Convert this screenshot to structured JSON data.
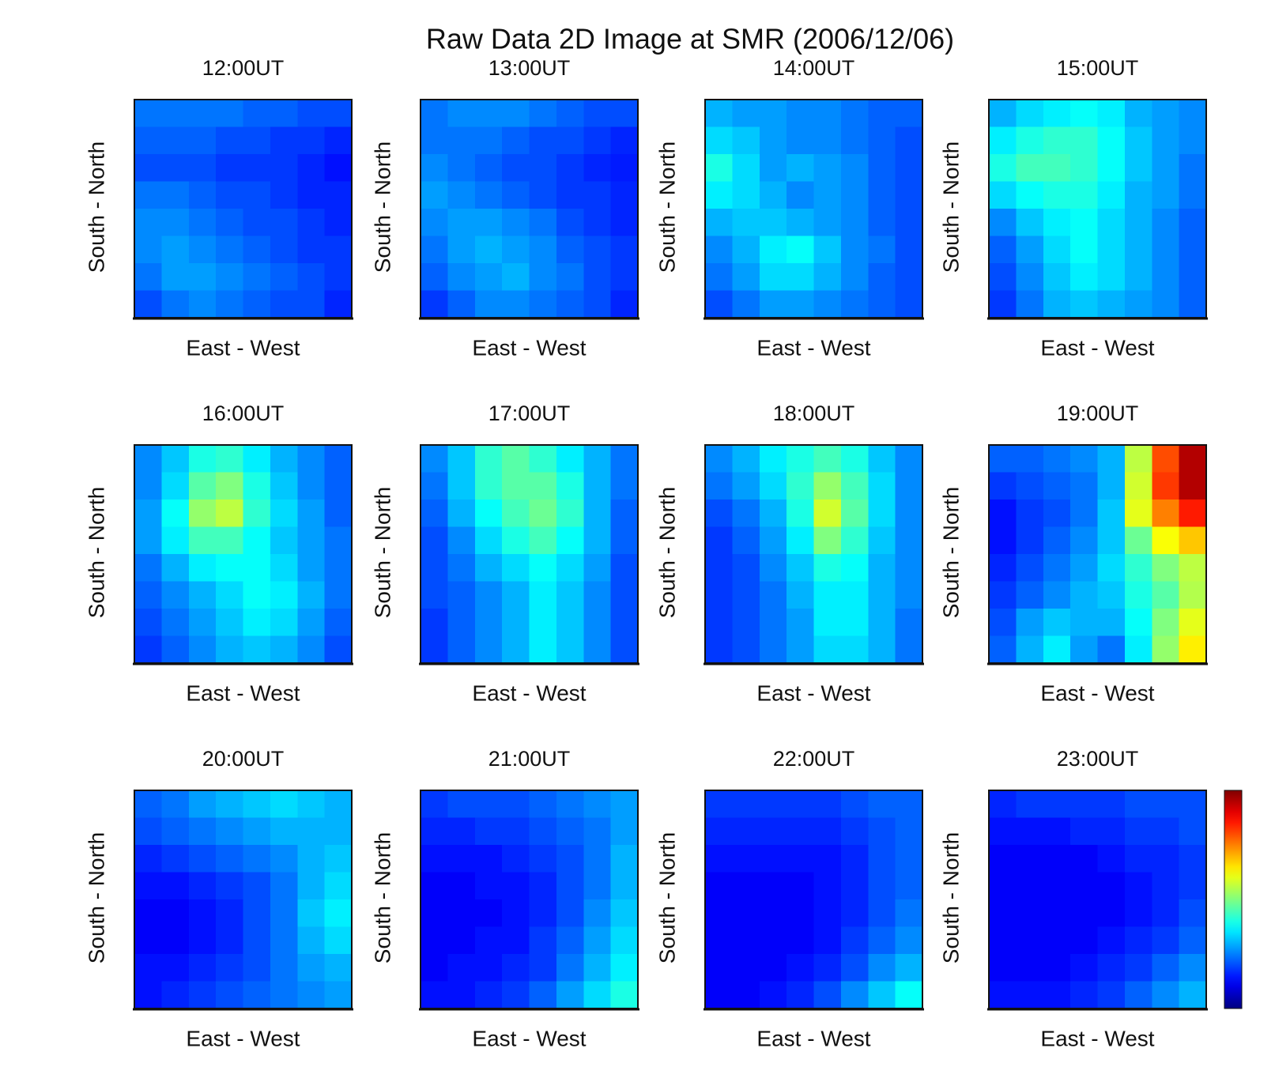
{
  "title": "Raw Data 2D Image at SMR (2006/12/06)",
  "colorbar": {
    "colormap": "jet",
    "vlim": [
      0,
      1
    ]
  },
  "chart_data": [
    {
      "type": "heatmap",
      "title": "12:00UT",
      "xlabel": "East - West",
      "ylabel": "South - North",
      "values": [
        [
          0.24,
          0.24,
          0.24,
          0.24,
          0.22,
          0.22,
          0.2,
          0.2
        ],
        [
          0.22,
          0.22,
          0.22,
          0.2,
          0.2,
          0.18,
          0.18,
          0.16
        ],
        [
          0.2,
          0.2,
          0.2,
          0.18,
          0.18,
          0.18,
          0.16,
          0.14
        ],
        [
          0.24,
          0.24,
          0.22,
          0.2,
          0.2,
          0.18,
          0.16,
          0.16
        ],
        [
          0.26,
          0.26,
          0.24,
          0.22,
          0.2,
          0.2,
          0.18,
          0.16
        ],
        [
          0.26,
          0.28,
          0.26,
          0.24,
          0.22,
          0.2,
          0.18,
          0.18
        ],
        [
          0.24,
          0.28,
          0.28,
          0.26,
          0.24,
          0.22,
          0.2,
          0.18
        ],
        [
          0.2,
          0.24,
          0.26,
          0.24,
          0.22,
          0.2,
          0.2,
          0.16
        ]
      ]
    },
    {
      "type": "heatmap",
      "title": "13:00UT",
      "xlabel": "East - West",
      "ylabel": "South - North",
      "values": [
        [
          0.24,
          0.26,
          0.26,
          0.26,
          0.24,
          0.22,
          0.2,
          0.2
        ],
        [
          0.24,
          0.24,
          0.24,
          0.22,
          0.2,
          0.2,
          0.18,
          0.16
        ],
        [
          0.26,
          0.24,
          0.22,
          0.2,
          0.2,
          0.18,
          0.16,
          0.15
        ],
        [
          0.28,
          0.26,
          0.24,
          0.22,
          0.2,
          0.18,
          0.18,
          0.16
        ],
        [
          0.26,
          0.28,
          0.28,
          0.26,
          0.24,
          0.2,
          0.18,
          0.16
        ],
        [
          0.24,
          0.28,
          0.3,
          0.28,
          0.26,
          0.22,
          0.2,
          0.18
        ],
        [
          0.22,
          0.26,
          0.28,
          0.3,
          0.26,
          0.24,
          0.2,
          0.18
        ],
        [
          0.18,
          0.22,
          0.26,
          0.26,
          0.24,
          0.22,
          0.2,
          0.16
        ]
      ]
    },
    {
      "type": "heatmap",
      "title": "14:00UT",
      "xlabel": "East - West",
      "ylabel": "South - North",
      "values": [
        [
          0.3,
          0.28,
          0.28,
          0.26,
          0.26,
          0.24,
          0.22,
          0.22
        ],
        [
          0.34,
          0.32,
          0.28,
          0.26,
          0.26,
          0.24,
          0.22,
          0.2
        ],
        [
          0.4,
          0.34,
          0.28,
          0.3,
          0.28,
          0.26,
          0.22,
          0.2
        ],
        [
          0.36,
          0.34,
          0.3,
          0.26,
          0.28,
          0.26,
          0.22,
          0.2
        ],
        [
          0.3,
          0.32,
          0.32,
          0.3,
          0.28,
          0.26,
          0.22,
          0.2
        ],
        [
          0.26,
          0.3,
          0.36,
          0.38,
          0.32,
          0.26,
          0.24,
          0.2
        ],
        [
          0.24,
          0.28,
          0.34,
          0.34,
          0.3,
          0.26,
          0.22,
          0.2
        ],
        [
          0.2,
          0.24,
          0.28,
          0.28,
          0.26,
          0.24,
          0.22,
          0.2
        ]
      ]
    },
    {
      "type": "heatmap",
      "title": "15:00UT",
      "xlabel": "East - West",
      "ylabel": "South - North",
      "values": [
        [
          0.3,
          0.34,
          0.36,
          0.38,
          0.36,
          0.3,
          0.28,
          0.26
        ],
        [
          0.36,
          0.4,
          0.42,
          0.42,
          0.38,
          0.32,
          0.28,
          0.26
        ],
        [
          0.4,
          0.44,
          0.44,
          0.42,
          0.38,
          0.32,
          0.28,
          0.24
        ],
        [
          0.34,
          0.38,
          0.4,
          0.4,
          0.36,
          0.3,
          0.28,
          0.24
        ],
        [
          0.26,
          0.32,
          0.36,
          0.38,
          0.34,
          0.3,
          0.26,
          0.22
        ],
        [
          0.22,
          0.28,
          0.34,
          0.38,
          0.34,
          0.3,
          0.26,
          0.22
        ],
        [
          0.2,
          0.26,
          0.32,
          0.36,
          0.34,
          0.3,
          0.26,
          0.22
        ],
        [
          0.18,
          0.24,
          0.3,
          0.32,
          0.3,
          0.28,
          0.26,
          0.22
        ]
      ]
    },
    {
      "type": "heatmap",
      "title": "16:00UT",
      "xlabel": "East - West",
      "ylabel": "South - North",
      "values": [
        [
          0.26,
          0.32,
          0.4,
          0.42,
          0.36,
          0.3,
          0.26,
          0.22
        ],
        [
          0.26,
          0.34,
          0.46,
          0.5,
          0.4,
          0.32,
          0.26,
          0.22
        ],
        [
          0.28,
          0.38,
          0.52,
          0.56,
          0.42,
          0.34,
          0.28,
          0.22
        ],
        [
          0.28,
          0.36,
          0.44,
          0.44,
          0.38,
          0.32,
          0.28,
          0.24
        ],
        [
          0.24,
          0.3,
          0.36,
          0.38,
          0.38,
          0.34,
          0.28,
          0.24
        ],
        [
          0.22,
          0.26,
          0.3,
          0.34,
          0.38,
          0.36,
          0.3,
          0.24
        ],
        [
          0.2,
          0.24,
          0.28,
          0.32,
          0.36,
          0.34,
          0.28,
          0.22
        ],
        [
          0.18,
          0.22,
          0.26,
          0.3,
          0.32,
          0.3,
          0.26,
          0.2
        ]
      ]
    },
    {
      "type": "heatmap",
      "title": "17:00UT",
      "xlabel": "East - West",
      "ylabel": "South - North",
      "values": [
        [
          0.26,
          0.32,
          0.42,
          0.46,
          0.42,
          0.36,
          0.3,
          0.24
        ],
        [
          0.24,
          0.32,
          0.42,
          0.46,
          0.46,
          0.4,
          0.3,
          0.24
        ],
        [
          0.22,
          0.3,
          0.38,
          0.44,
          0.48,
          0.42,
          0.3,
          0.22
        ],
        [
          0.2,
          0.26,
          0.34,
          0.4,
          0.44,
          0.38,
          0.3,
          0.22
        ],
        [
          0.2,
          0.24,
          0.3,
          0.34,
          0.38,
          0.34,
          0.28,
          0.2
        ],
        [
          0.2,
          0.22,
          0.26,
          0.3,
          0.36,
          0.32,
          0.26,
          0.2
        ],
        [
          0.18,
          0.22,
          0.26,
          0.3,
          0.36,
          0.32,
          0.26,
          0.2
        ],
        [
          0.18,
          0.22,
          0.26,
          0.3,
          0.36,
          0.32,
          0.26,
          0.2
        ]
      ]
    },
    {
      "type": "heatmap",
      "title": "18:00UT",
      "xlabel": "East - West",
      "ylabel": "South - North",
      "values": [
        [
          0.26,
          0.3,
          0.36,
          0.4,
          0.44,
          0.4,
          0.32,
          0.26
        ],
        [
          0.24,
          0.28,
          0.34,
          0.42,
          0.52,
          0.44,
          0.34,
          0.26
        ],
        [
          0.2,
          0.24,
          0.3,
          0.4,
          0.58,
          0.46,
          0.34,
          0.26
        ],
        [
          0.18,
          0.22,
          0.28,
          0.36,
          0.5,
          0.42,
          0.32,
          0.26
        ],
        [
          0.18,
          0.2,
          0.26,
          0.32,
          0.4,
          0.38,
          0.3,
          0.26
        ],
        [
          0.18,
          0.2,
          0.24,
          0.3,
          0.36,
          0.36,
          0.3,
          0.26
        ],
        [
          0.18,
          0.2,
          0.24,
          0.28,
          0.36,
          0.36,
          0.3,
          0.24
        ],
        [
          0.18,
          0.2,
          0.24,
          0.28,
          0.34,
          0.34,
          0.3,
          0.24
        ]
      ]
    },
    {
      "type": "heatmap",
      "title": "19:00UT",
      "xlabel": "East - West",
      "ylabel": "South - North",
      "values": [
        [
          0.22,
          0.22,
          0.24,
          0.26,
          0.3,
          0.56,
          0.8,
          0.95
        ],
        [
          0.18,
          0.2,
          0.22,
          0.24,
          0.3,
          0.58,
          0.82,
          0.95
        ],
        [
          0.14,
          0.18,
          0.2,
          0.24,
          0.32,
          0.6,
          0.75,
          0.85
        ],
        [
          0.14,
          0.18,
          0.22,
          0.26,
          0.32,
          0.48,
          0.62,
          0.68
        ],
        [
          0.16,
          0.2,
          0.24,
          0.28,
          0.34,
          0.42,
          0.5,
          0.56
        ],
        [
          0.18,
          0.22,
          0.26,
          0.3,
          0.32,
          0.4,
          0.46,
          0.55
        ],
        [
          0.2,
          0.28,
          0.32,
          0.3,
          0.3,
          0.38,
          0.5,
          0.6
        ],
        [
          0.22,
          0.3,
          0.36,
          0.28,
          0.24,
          0.36,
          0.52,
          0.64
        ]
      ]
    },
    {
      "type": "heatmap",
      "title": "20:00UT",
      "xlabel": "East - West",
      "ylabel": "South - North",
      "values": [
        [
          0.22,
          0.24,
          0.28,
          0.3,
          0.32,
          0.34,
          0.32,
          0.3
        ],
        [
          0.2,
          0.22,
          0.24,
          0.26,
          0.28,
          0.3,
          0.3,
          0.3
        ],
        [
          0.16,
          0.18,
          0.2,
          0.22,
          0.24,
          0.26,
          0.3,
          0.32
        ],
        [
          0.14,
          0.14,
          0.16,
          0.18,
          0.2,
          0.24,
          0.3,
          0.34
        ],
        [
          0.12,
          0.12,
          0.14,
          0.16,
          0.2,
          0.24,
          0.32,
          0.36
        ],
        [
          0.12,
          0.12,
          0.14,
          0.16,
          0.2,
          0.24,
          0.3,
          0.34
        ],
        [
          0.14,
          0.14,
          0.16,
          0.18,
          0.2,
          0.24,
          0.28,
          0.3
        ],
        [
          0.14,
          0.16,
          0.18,
          0.2,
          0.22,
          0.24,
          0.26,
          0.28
        ]
      ]
    },
    {
      "type": "heatmap",
      "title": "21:00UT",
      "xlabel": "East - West",
      "ylabel": "South - North",
      "values": [
        [
          0.18,
          0.2,
          0.2,
          0.2,
          0.22,
          0.24,
          0.26,
          0.28
        ],
        [
          0.16,
          0.16,
          0.18,
          0.18,
          0.2,
          0.22,
          0.24,
          0.28
        ],
        [
          0.14,
          0.14,
          0.14,
          0.16,
          0.18,
          0.2,
          0.24,
          0.3
        ],
        [
          0.12,
          0.12,
          0.14,
          0.14,
          0.16,
          0.2,
          0.24,
          0.3
        ],
        [
          0.12,
          0.12,
          0.12,
          0.14,
          0.16,
          0.2,
          0.26,
          0.32
        ],
        [
          0.12,
          0.12,
          0.14,
          0.14,
          0.18,
          0.22,
          0.28,
          0.34
        ],
        [
          0.12,
          0.14,
          0.14,
          0.16,
          0.18,
          0.24,
          0.3,
          0.36
        ],
        [
          0.14,
          0.14,
          0.16,
          0.18,
          0.22,
          0.28,
          0.34,
          0.4
        ]
      ]
    },
    {
      "type": "heatmap",
      "title": "22:00UT",
      "xlabel": "East - West",
      "ylabel": "South - North",
      "values": [
        [
          0.18,
          0.18,
          0.18,
          0.18,
          0.18,
          0.2,
          0.22,
          0.22
        ],
        [
          0.16,
          0.16,
          0.16,
          0.16,
          0.16,
          0.18,
          0.2,
          0.22
        ],
        [
          0.14,
          0.14,
          0.14,
          0.14,
          0.14,
          0.16,
          0.2,
          0.22
        ],
        [
          0.12,
          0.12,
          0.12,
          0.12,
          0.14,
          0.16,
          0.2,
          0.22
        ],
        [
          0.12,
          0.12,
          0.12,
          0.12,
          0.14,
          0.16,
          0.2,
          0.24
        ],
        [
          0.12,
          0.12,
          0.12,
          0.12,
          0.14,
          0.18,
          0.22,
          0.26
        ],
        [
          0.12,
          0.12,
          0.12,
          0.14,
          0.16,
          0.2,
          0.26,
          0.3
        ],
        [
          0.12,
          0.12,
          0.14,
          0.16,
          0.2,
          0.26,
          0.32,
          0.38
        ]
      ]
    },
    {
      "type": "heatmap",
      "title": "23:00UT",
      "xlabel": "East - West",
      "ylabel": "South - North",
      "values": [
        [
          0.16,
          0.18,
          0.18,
          0.18,
          0.18,
          0.2,
          0.2,
          0.2
        ],
        [
          0.14,
          0.14,
          0.14,
          0.16,
          0.16,
          0.18,
          0.18,
          0.2
        ],
        [
          0.12,
          0.12,
          0.12,
          0.12,
          0.14,
          0.16,
          0.16,
          0.18
        ],
        [
          0.12,
          0.12,
          0.12,
          0.12,
          0.12,
          0.14,
          0.16,
          0.18
        ],
        [
          0.12,
          0.12,
          0.12,
          0.12,
          0.12,
          0.14,
          0.16,
          0.2
        ],
        [
          0.12,
          0.12,
          0.12,
          0.12,
          0.14,
          0.16,
          0.18,
          0.22
        ],
        [
          0.12,
          0.12,
          0.12,
          0.14,
          0.16,
          0.18,
          0.22,
          0.26
        ],
        [
          0.14,
          0.14,
          0.14,
          0.16,
          0.18,
          0.22,
          0.26,
          0.3
        ]
      ]
    }
  ]
}
